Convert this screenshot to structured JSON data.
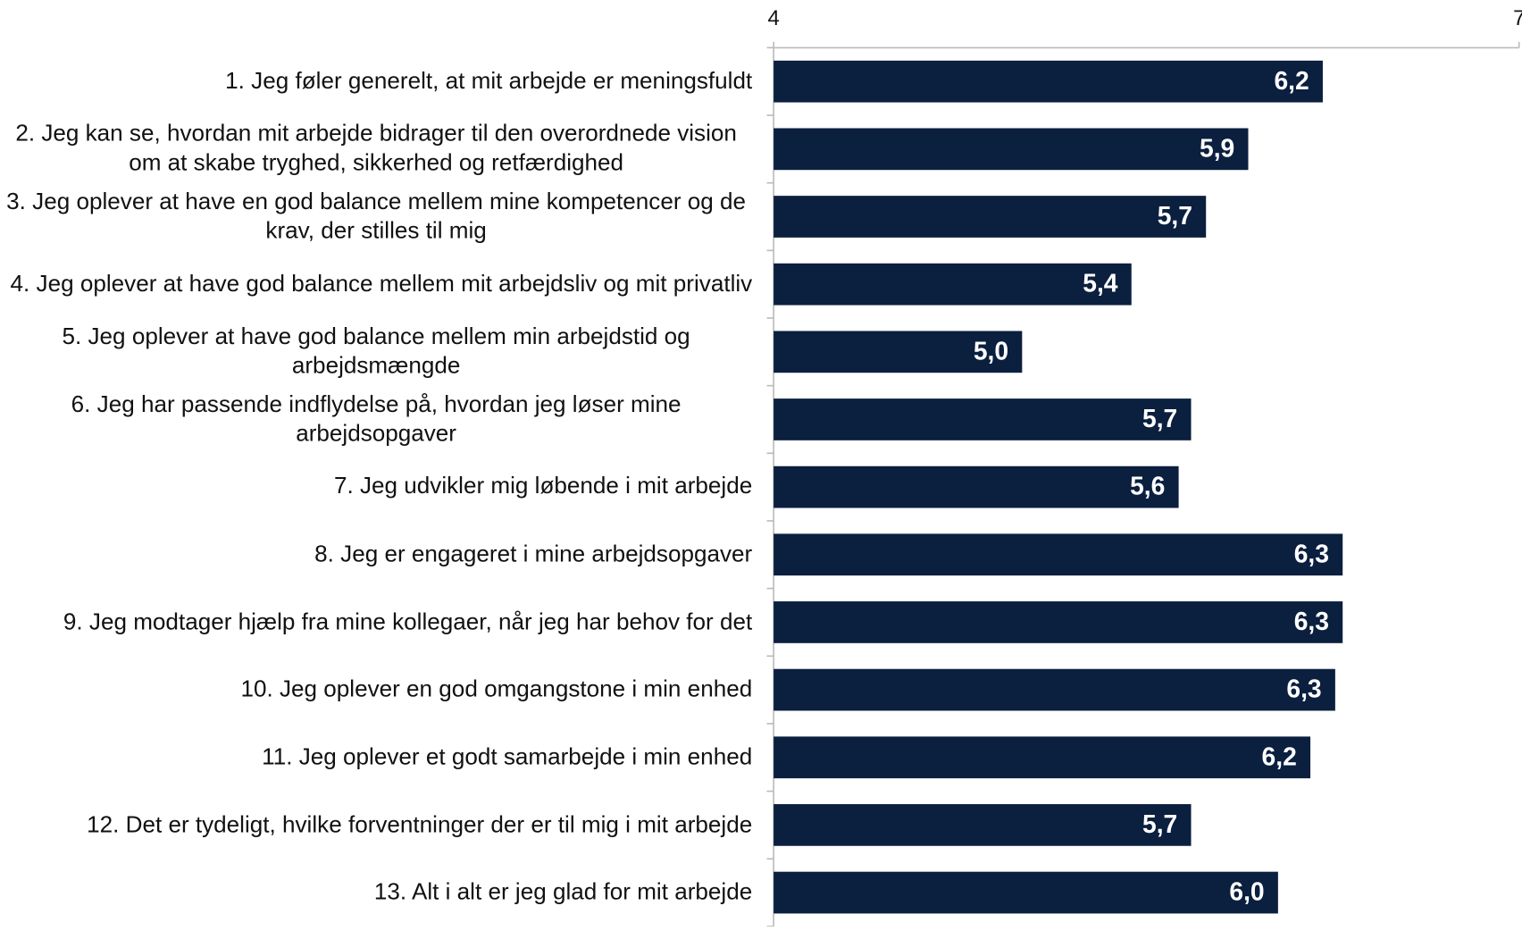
{
  "chart_data": {
    "type": "barh",
    "categories": [
      "1. Jeg føler generelt, at mit arbejde er meningsfuldt",
      "2. Jeg kan se, hvordan mit arbejde bidrager til den overordnede vision om at skabe tryghed, sikkerhed og retfærdighed",
      "3. Jeg oplever at have en god balance mellem mine kompetencer og de krav, der stilles til mig",
      "4. Jeg oplever at have god balance mellem mit arbejdsliv og mit privatliv",
      "5. Jeg oplever at have god balance mellem min arbejdstid og arbejdsmængde",
      "6. Jeg har passende indflydelse på, hvordan jeg løser mine arbejdsopgaver",
      "7. Jeg udvikler mig løbende i mit arbejde",
      "8. Jeg er engageret i mine arbejdsopgaver",
      "9. Jeg modtager hjælp fra mine kollegaer, når jeg har behov for det",
      "10. Jeg oplever en god omgangstone i min enhed",
      "11. Jeg oplever et godt samarbejde i min enhed",
      "12. Det er tydeligt, hvilke forventninger der er til mig i mit arbejde",
      "13. Alt i alt er jeg glad for mit arbejde"
    ],
    "values": [
      6.21,
      5.91,
      5.74,
      5.44,
      5.0,
      5.68,
      5.63,
      6.29,
      6.29,
      6.26,
      6.16,
      5.68,
      6.03
    ],
    "value_labels": [
      "6,2",
      "5,9",
      "5,7",
      "5,4",
      "5,0",
      "5,7",
      "5,6",
      "6,3",
      "6,3",
      "6,3",
      "6,2",
      "5,7",
      "6,0"
    ],
    "color": "#0b1f3f",
    "xlim": [
      4,
      7
    ],
    "xticks": [
      4,
      7
    ]
  }
}
